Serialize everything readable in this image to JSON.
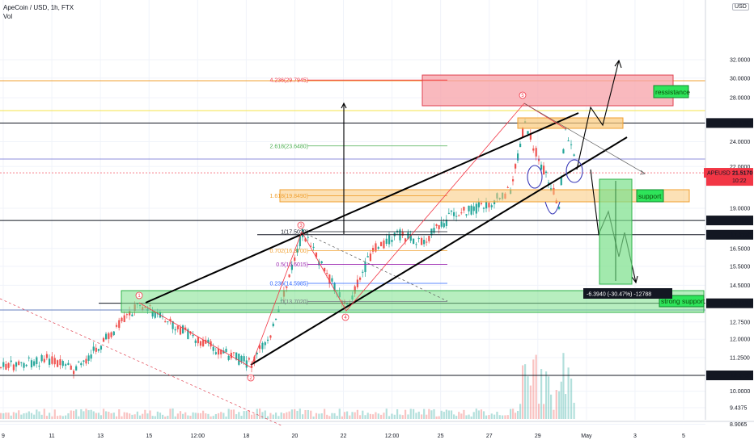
{
  "header": {
    "symbol_line": "ApeCoin / USD, 1h, FTX",
    "volume_label": "Vol"
  },
  "currency_button": "USD",
  "colors": {
    "up": "#26a69a",
    "down": "#ef5350",
    "resistance_fill": "#f7a1a8",
    "support_fill": "#f9c97a",
    "strong_support_fill": "#7be08a",
    "fib_red": "#f23645"
  },
  "chart_data": {
    "type": "candlestick",
    "title": "ApeCoin / USD, 1h, FTX",
    "price_axis": {
      "ticks": [
        "32.0000",
        "30.0000",
        "28.0000",
        "24.0000",
        "22.0000",
        "19.0000",
        "16.5000",
        "15.5000",
        "14.5000",
        "12.7500",
        "12.0000",
        "11.2500",
        "10.0000",
        "9.4375",
        "8.9065"
      ]
    },
    "time_axis": {
      "ticks": [
        "9",
        "11",
        "13",
        "15",
        "12:00",
        "18",
        "20",
        "22",
        "12:00",
        "25",
        "27",
        "29",
        "May",
        "3",
        "5"
      ]
    },
    "horizontal_levels": [
      {
        "label": "25.6280",
        "value": 25.628,
        "color": "#131722"
      },
      {
        "label": "21.5170",
        "value": 21.517,
        "color": "#f23645",
        "symbol": "APEUSD",
        "sub": "10:22"
      },
      {
        "label": "18.2065",
        "value": 18.2065,
        "color": "#131722"
      },
      {
        "label": "17.3150",
        "value": 17.315,
        "color": "#131722"
      },
      {
        "label": "13.6135",
        "value": 13.6135,
        "color": "#131722"
      },
      {
        "label": "10.5700",
        "value": 10.57,
        "color": "#131722"
      }
    ],
    "fibonacci": [
      {
        "label": "4.236(29.7945)",
        "value": 29.7945
      },
      {
        "label": "2.618(23.6480)",
        "value": 23.648
      },
      {
        "label": "1.618(19.8490)",
        "value": 19.849
      },
      {
        "label": "1(17.5020)",
        "value": 17.502
      },
      {
        "label": "0.702(16.3700)",
        "value": 16.37
      },
      {
        "label": "0.5(15.6015)",
        "value": 15.6015
      },
      {
        "label": "0.236(14.5985)",
        "value": 14.5985
      },
      {
        "label": "0(13.7020)",
        "value": 13.702
      }
    ],
    "zones": [
      {
        "label": "ressistance"
      },
      {
        "label": "support"
      },
      {
        "label": "strong support"
      }
    ],
    "wave_labels": [
      "1",
      "2",
      "3",
      "4",
      "5"
    ],
    "measure_label": "-6.3940 (-30.47%) -12788"
  }
}
